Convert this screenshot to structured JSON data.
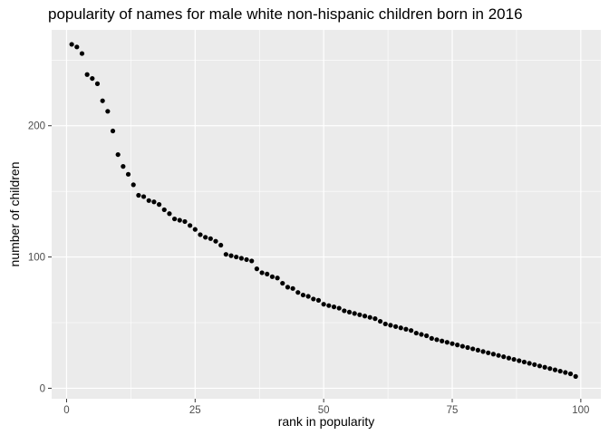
{
  "chart_data": {
    "type": "scatter",
    "title": "popularity of names for male white non-hispanic children born in 2016",
    "xlabel": "rank in popularity",
    "ylabel": "number of children",
    "xlim": [
      -2.9,
      103.9
    ],
    "ylim": [
      -8,
      273
    ],
    "x_ticks": [
      0,
      25,
      50,
      75,
      100
    ],
    "x_tick_labels": [
      "0",
      "25",
      "50",
      "75",
      "100"
    ],
    "y_ticks": [
      0,
      100,
      200
    ],
    "y_tick_labels": [
      "0",
      "100",
      "200"
    ],
    "grid": true,
    "panel_background": "#ebebeb",
    "grid_color": "#ffffff",
    "point_color": "#000000",
    "x": [
      1,
      2,
      3,
      4,
      5,
      6,
      7,
      8,
      9,
      10,
      11,
      12,
      13,
      14,
      15,
      16,
      17,
      18,
      19,
      20,
      21,
      22,
      23,
      24,
      25,
      26,
      27,
      28,
      29,
      30,
      31,
      32,
      33,
      34,
      35,
      36,
      37,
      38,
      39,
      40,
      41,
      42,
      43,
      44,
      45,
      46,
      47,
      48,
      49,
      50,
      51,
      52,
      53,
      54,
      55,
      56,
      57,
      58,
      59,
      60,
      61,
      62,
      63,
      64,
      65,
      66,
      67,
      68,
      69,
      70,
      71,
      72,
      73,
      74,
      75,
      76,
      77,
      78,
      79,
      80,
      81,
      82,
      83,
      84,
      85,
      86,
      87,
      88,
      89,
      90,
      91,
      92,
      93,
      94,
      95,
      96,
      97,
      98,
      99
    ],
    "y": [
      262,
      260,
      255,
      239,
      236,
      232,
      219,
      211,
      196,
      178,
      169,
      163,
      155,
      147,
      146,
      143,
      142,
      140,
      136,
      133,
      129,
      128,
      127,
      124,
      121,
      117,
      115,
      114,
      112,
      109,
      102,
      101,
      100,
      99,
      98,
      97,
      91,
      88,
      87,
      85,
      84,
      80,
      77,
      76,
      73,
      71,
      70,
      68,
      67,
      64,
      63,
      62,
      61,
      59,
      58,
      57,
      56,
      55,
      54,
      53,
      51,
      49,
      48,
      47,
      46,
      45,
      44,
      42,
      41,
      40,
      38,
      37,
      36,
      35,
      34,
      33,
      32,
      31,
      30,
      29,
      28,
      27,
      26,
      25,
      24,
      23,
      22,
      21,
      20,
      19,
      18,
      17,
      16,
      15,
      14,
      13,
      12,
      11,
      9
    ]
  }
}
